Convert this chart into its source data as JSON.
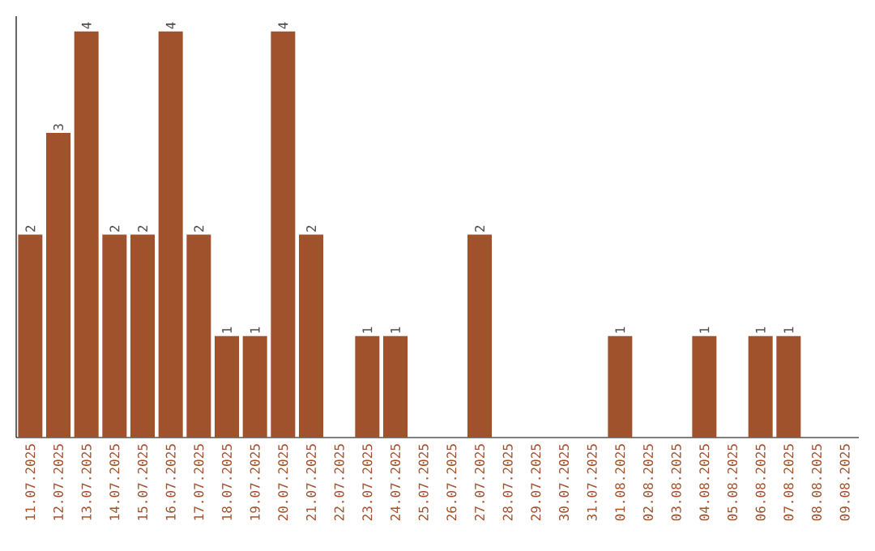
{
  "chart_data": {
    "type": "bar",
    "categories": [
      "11.07.2025",
      "12.07.2025",
      "13.07.2025",
      "14.07.2025",
      "15.07.2025",
      "16.07.2025",
      "17.07.2025",
      "18.07.2025",
      "19.07.2025",
      "20.07.2025",
      "21.07.2025",
      "22.07.2025",
      "23.07.2025",
      "24.07.2025",
      "25.07.2025",
      "26.07.2025",
      "27.07.2025",
      "28.07.2025",
      "29.07.2025",
      "30.07.2025",
      "31.07.2025",
      "01.08.2025",
      "02.08.2025",
      "03.08.2025",
      "04.08.2025",
      "05.08.2025",
      "06.08.2025",
      "07.08.2025",
      "08.08.2025",
      "09.08.2025"
    ],
    "values": [
      2,
      3,
      4,
      2,
      2,
      4,
      2,
      1,
      1,
      4,
      2,
      0,
      1,
      1,
      0,
      0,
      2,
      0,
      0,
      0,
      0,
      1,
      0,
      0,
      1,
      0,
      1,
      1,
      0,
      0
    ],
    "value_labels": [
      "2",
      "3",
      "4",
      "2",
      "2",
      "4",
      "2",
      "1",
      "1",
      "4",
      "2",
      null,
      "1",
      "1",
      null,
      null,
      "2",
      null,
      null,
      null,
      null,
      "1",
      null,
      null,
      "1",
      null,
      "1",
      "1",
      null,
      null
    ],
    "color": "#a0522d",
    "ylim": [
      0,
      4.15
    ],
    "tick_labels": "x",
    "grid": false
  }
}
